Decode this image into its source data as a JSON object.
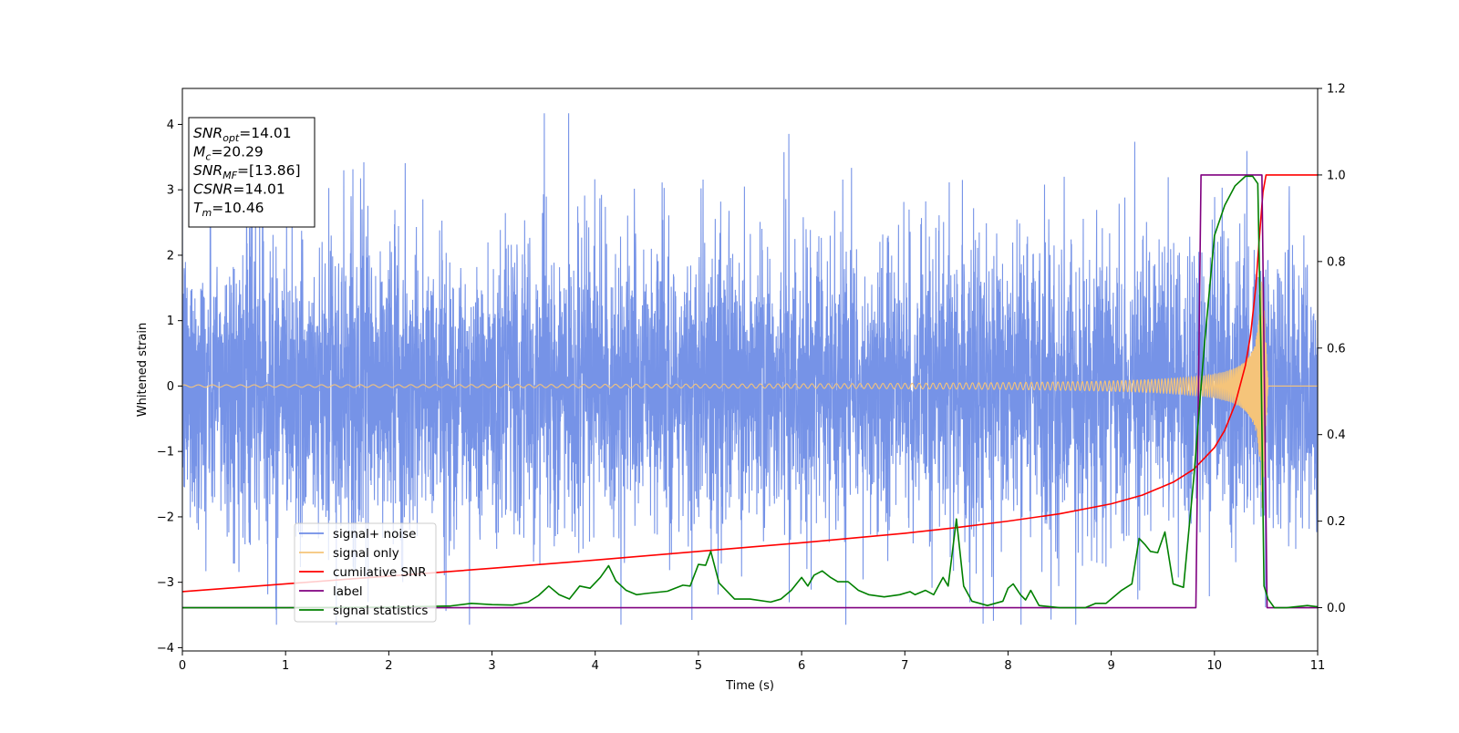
{
  "chart_data": {
    "type": "line",
    "title": "",
    "xlabel": "Time (s)",
    "ylabel": "Whitened strain",
    "y2label": "",
    "xlim": [
      0,
      11
    ],
    "ylim": [
      -4.05,
      4.55
    ],
    "y2lim": [
      -0.1,
      1.2
    ],
    "xticks": [
      0,
      1,
      2,
      3,
      4,
      5,
      6,
      7,
      8,
      9,
      10,
      11
    ],
    "yticks": [
      -4,
      -3,
      -2,
      -1,
      0,
      1,
      2,
      3,
      4
    ],
    "y2ticks": [
      0.0,
      0.2,
      0.4,
      0.6,
      0.8,
      1.0,
      1.2
    ],
    "ytick_labels": [
      "−4",
      "−3",
      "−2",
      "−1",
      "0",
      "1",
      "2",
      "3",
      "4"
    ],
    "y2tick_labels": [
      "0.0",
      "0.2",
      "0.4",
      "0.6",
      "0.8",
      "1.0",
      "1.2"
    ],
    "grid": false,
    "legend_placement": "lower-left",
    "info_box": {
      "lines": [
        {
          "sym": "SNR",
          "sub": "opt",
          "val": "=14.01"
        },
        {
          "sym": "M",
          "sub": "c",
          "val": "=20.29"
        },
        {
          "sym": "SNR",
          "sub": "MF",
          "val": "=[13.86]"
        },
        {
          "sym": "CSNR",
          "sub": "",
          "val": "=14.01"
        },
        {
          "sym": "T",
          "sub": "m",
          "val": "=10.46"
        }
      ]
    },
    "series": [
      {
        "name": "signal+ noise",
        "axis": "left",
        "color": "#6f8de6",
        "description_kind": "noise",
        "noise_std": 1.1,
        "noise_range": [
          -3.65,
          4.17
        ]
      },
      {
        "name": "signal only",
        "axis": "left",
        "color": "#f5c47a",
        "description_kind": "chirp",
        "merger_time": 10.46,
        "end_time": 10.52,
        "peak_amplitude": 2.0
      },
      {
        "name": "cumilative SNR",
        "axis": "right",
        "color": "#ff0000",
        "x": [
          0,
          1,
          2,
          3,
          4,
          5,
          6,
          7,
          7.5,
          8,
          8.5,
          9,
          9.3,
          9.6,
          9.8,
          10.0,
          10.1,
          10.2,
          10.3,
          10.35,
          10.4,
          10.44,
          10.47,
          10.5,
          10.52,
          11
        ],
        "y": [
          0.037,
          0.055,
          0.073,
          0.091,
          0.11,
          0.13,
          0.15,
          0.172,
          0.185,
          0.2,
          0.217,
          0.24,
          0.26,
          0.29,
          0.32,
          0.37,
          0.41,
          0.47,
          0.56,
          0.63,
          0.74,
          0.87,
          0.96,
          1.0,
          1.0,
          1.0
        ]
      },
      {
        "name": "label",
        "axis": "right",
        "color": "#800080",
        "x": [
          0,
          9.82,
          9.87,
          10.46,
          10.51,
          11
        ],
        "y": [
          0,
          0,
          1,
          1,
          0,
          0
        ]
      },
      {
        "name": "signal statistics",
        "axis": "right",
        "color": "#008000",
        "x": [
          0,
          1,
          2,
          2.6,
          2.8,
          3.0,
          3.2,
          3.35,
          3.45,
          3.55,
          3.65,
          3.75,
          3.85,
          3.95,
          4.05,
          4.13,
          4.2,
          4.3,
          4.4,
          4.5,
          4.7,
          4.85,
          4.92,
          5.0,
          5.07,
          5.12,
          5.2,
          5.35,
          5.5,
          5.7,
          5.8,
          5.9,
          6.0,
          6.06,
          6.12,
          6.2,
          6.28,
          6.35,
          6.45,
          6.55,
          6.65,
          6.8,
          6.95,
          7.05,
          7.1,
          7.2,
          7.28,
          7.37,
          7.42,
          7.5,
          7.57,
          7.65,
          7.8,
          7.95,
          8.0,
          8.05,
          8.12,
          8.17,
          8.22,
          8.3,
          8.5,
          8.75,
          8.85,
          8.95,
          9.0,
          9.1,
          9.2,
          9.27,
          9.33,
          9.38,
          9.45,
          9.52,
          9.6,
          9.7,
          9.8,
          9.9,
          10.0,
          10.1,
          10.2,
          10.3,
          10.37,
          10.42,
          10.45,
          10.48,
          10.52,
          10.58,
          10.7,
          10.9,
          11.0
        ],
        "y": [
          0.0,
          0.0,
          0.001,
          0.004,
          0.01,
          0.007,
          0.006,
          0.013,
          0.028,
          0.05,
          0.03,
          0.02,
          0.05,
          0.045,
          0.07,
          0.097,
          0.062,
          0.04,
          0.03,
          0.033,
          0.038,
          0.052,
          0.05,
          0.1,
          0.098,
          0.13,
          0.057,
          0.02,
          0.02,
          0.013,
          0.02,
          0.04,
          0.07,
          0.05,
          0.075,
          0.085,
          0.07,
          0.06,
          0.06,
          0.04,
          0.03,
          0.025,
          0.03,
          0.037,
          0.03,
          0.04,
          0.03,
          0.07,
          0.05,
          0.205,
          0.05,
          0.015,
          0.005,
          0.015,
          0.045,
          0.055,
          0.03,
          0.018,
          0.04,
          0.005,
          0.0,
          0.0,
          0.01,
          0.01,
          0.02,
          0.04,
          0.055,
          0.16,
          0.145,
          0.13,
          0.127,
          0.175,
          0.055,
          0.047,
          0.3,
          0.6,
          0.86,
          0.93,
          0.975,
          0.997,
          0.997,
          0.98,
          0.6,
          0.05,
          0.02,
          0.0,
          0.0,
          0.005,
          0.002
        ]
      }
    ]
  }
}
